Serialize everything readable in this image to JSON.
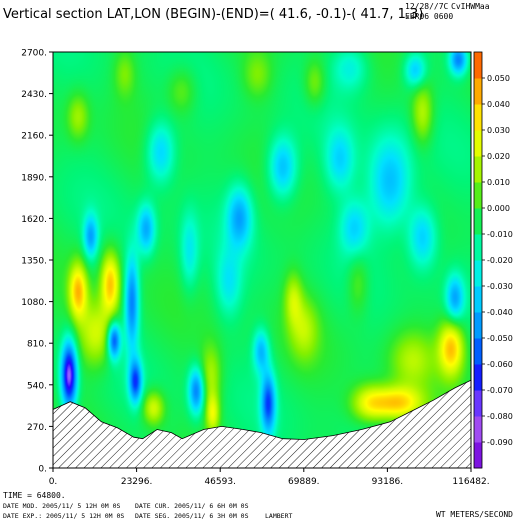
{
  "header": {
    "title": "Vertical section LAT,LON (BEGIN)-(END)=( 41.6, -0.1)-( 41.7,  1.3)",
    "stamp_line1": "12/28//7C",
    "stamp_line2": "CvIHWMaa",
    "stamp_line3": "EBR06 0600"
  },
  "footer": {
    "time_line": "TIME =   64800.",
    "date_mod": "DATE MOD. 2005/11/ 5  12H 0M 0S",
    "date_cur": "DATE CUR. 2005/11/ 6   6H 0M 0S",
    "date_exp": "DATE EXP.: 2005/11/ 5  12H 0M 0S",
    "date_seg": "DATE SEG. 2005/11/ 6   3H 0M 0S",
    "projection": "LAMBERT",
    "units": "WT METERS/SECOND"
  },
  "chart_data": {
    "type": "heatmap",
    "title": "Vertical section LAT,LON (BEGIN)-(END)=( 41.6, -0.1)-( 41.7,  1.3)",
    "xlabel": "",
    "ylabel": "",
    "colorbar_label": "WT METERS/SECOND",
    "x_ticks": [
      0,
      23296,
      46593,
      69889,
      93186,
      116482
    ],
    "x_tick_labels": [
      "0.",
      "23296.",
      "46593.",
      "69889.",
      "93186.",
      "116482."
    ],
    "y_ticks": [
      0,
      270,
      540,
      810,
      1080,
      1350,
      1620,
      1890,
      2160,
      2430,
      2700
    ],
    "y_tick_labels": [
      "0.",
      "270.",
      "540.",
      "810.",
      "1080.",
      "1350.",
      "1620.",
      "1890.",
      "2160.",
      "2430.",
      "2700."
    ],
    "xlim": [
      0,
      116482
    ],
    "ylim": [
      0,
      2700
    ],
    "colorbar_levels": [
      0.05,
      0.04,
      0.03,
      0.02,
      0.01,
      0.0,
      -0.01,
      -0.02,
      -0.03,
      -0.04,
      -0.05,
      -0.06,
      -0.07,
      -0.08,
      -0.09
    ],
    "colorbar_labels": [
      "0.050",
      "0.040",
      "0.030",
      "0.020",
      "0.010",
      "0.000",
      "-0.010",
      "-0.020",
      "-0.030",
      "-0.040",
      "-0.050",
      "-0.060",
      "-0.070",
      "-0.080",
      "-0.090"
    ],
    "colorbar_range": [
      -0.1,
      0.06
    ],
    "terrain_profile": [
      {
        "x": 0,
        "y": 380
      },
      {
        "x": 4800,
        "y": 430
      },
      {
        "x": 9000,
        "y": 390
      },
      {
        "x": 13500,
        "y": 300
      },
      {
        "x": 18000,
        "y": 260
      },
      {
        "x": 22500,
        "y": 200
      },
      {
        "x": 25000,
        "y": 190
      },
      {
        "x": 29000,
        "y": 250
      },
      {
        "x": 33000,
        "y": 230
      },
      {
        "x": 36000,
        "y": 190
      },
      {
        "x": 42000,
        "y": 250
      },
      {
        "x": 47000,
        "y": 270
      },
      {
        "x": 53000,
        "y": 250
      },
      {
        "x": 58000,
        "y": 230
      },
      {
        "x": 64000,
        "y": 190
      },
      {
        "x": 70000,
        "y": 185
      },
      {
        "x": 78000,
        "y": 210
      },
      {
        "x": 86000,
        "y": 250
      },
      {
        "x": 94000,
        "y": 300
      },
      {
        "x": 100000,
        "y": 370
      },
      {
        "x": 106000,
        "y": 440
      },
      {
        "x": 112000,
        "y": 520
      },
      {
        "x": 116482,
        "y": 570
      }
    ],
    "features": [
      {
        "x": 7000,
        "y": 1150,
        "w": 0.045,
        "sx": 2500,
        "sy": 180
      },
      {
        "x": 16000,
        "y": 1200,
        "w": 0.045,
        "sx": 2600,
        "sy": 200
      },
      {
        "x": 12000,
        "y": 870,
        "w": 0.03,
        "sx": 5000,
        "sy": 220
      },
      {
        "x": 4500,
        "y": 600,
        "w": -0.075,
        "sx": 2200,
        "sy": 220
      },
      {
        "x": 17000,
        "y": 830,
        "w": -0.055,
        "sx": 1800,
        "sy": 120
      },
      {
        "x": 23000,
        "y": 560,
        "w": -0.05,
        "sx": 1800,
        "sy": 140
      },
      {
        "x": 22000,
        "y": 1080,
        "w": -0.045,
        "sx": 2000,
        "sy": 300
      },
      {
        "x": 10500,
        "y": 1500,
        "w": -0.035,
        "sx": 2000,
        "sy": 140
      },
      {
        "x": 28000,
        "y": 390,
        "w": 0.03,
        "sx": 3000,
        "sy": 110
      },
      {
        "x": 26000,
        "y": 1550,
        "w": -0.035,
        "sx": 2500,
        "sy": 160
      },
      {
        "x": 40000,
        "y": 500,
        "w": -0.045,
        "sx": 2200,
        "sy": 150
      },
      {
        "x": 44500,
        "y": 350,
        "w": 0.03,
        "sx": 2000,
        "sy": 130
      },
      {
        "x": 44000,
        "y": 600,
        "w": 0.022,
        "sx": 3000,
        "sy": 200
      },
      {
        "x": 60000,
        "y": 420,
        "w": -0.05,
        "sx": 2000,
        "sy": 200
      },
      {
        "x": 58000,
        "y": 760,
        "w": -0.032,
        "sx": 2200,
        "sy": 140
      },
      {
        "x": 49000,
        "y": 1200,
        "w": -0.02,
        "sx": 3500,
        "sy": 220
      },
      {
        "x": 52000,
        "y": 1630,
        "w": -0.035,
        "sx": 3500,
        "sy": 200
      },
      {
        "x": 64000,
        "y": 1950,
        "w": -0.035,
        "sx": 4000,
        "sy": 200
      },
      {
        "x": 70000,
        "y": 900,
        "w": 0.02,
        "sx": 4000,
        "sy": 200
      },
      {
        "x": 67000,
        "y": 1100,
        "w": 0.022,
        "sx": 2500,
        "sy": 170
      },
      {
        "x": 96000,
        "y": 420,
        "w": 0.045,
        "sx": 7000,
        "sy": 110
      },
      {
        "x": 88000,
        "y": 420,
        "w": 0.03,
        "sx": 5000,
        "sy": 120
      },
      {
        "x": 111000,
        "y": 780,
        "w": 0.045,
        "sx": 3500,
        "sy": 180
      },
      {
        "x": 100000,
        "y": 700,
        "w": 0.02,
        "sx": 6000,
        "sy": 180
      },
      {
        "x": 112000,
        "y": 1100,
        "w": -0.035,
        "sx": 2500,
        "sy": 150
      },
      {
        "x": 94000,
        "y": 1850,
        "w": -0.035,
        "sx": 6000,
        "sy": 300
      },
      {
        "x": 103000,
        "y": 1500,
        "w": -0.03,
        "sx": 4000,
        "sy": 200
      },
      {
        "x": 84000,
        "y": 1560,
        "w": -0.025,
        "sx": 4000,
        "sy": 180
      },
      {
        "x": 80000,
        "y": 2000,
        "w": -0.025,
        "sx": 4000,
        "sy": 200
      },
      {
        "x": 103000,
        "y": 2300,
        "w": 0.025,
        "sx": 3000,
        "sy": 200
      },
      {
        "x": 101000,
        "y": 2580,
        "w": -0.03,
        "sx": 3000,
        "sy": 110
      },
      {
        "x": 113000,
        "y": 2650,
        "w": -0.045,
        "sx": 2500,
        "sy": 100
      },
      {
        "x": 83000,
        "y": 2600,
        "w": -0.02,
        "sx": 5000,
        "sy": 150
      },
      {
        "x": 73000,
        "y": 2500,
        "w": 0.018,
        "sx": 3000,
        "sy": 150
      },
      {
        "x": 30000,
        "y": 2050,
        "w": -0.03,
        "sx": 4000,
        "sy": 200
      },
      {
        "x": 7000,
        "y": 2280,
        "w": 0.02,
        "sx": 3000,
        "sy": 150
      },
      {
        "x": 36000,
        "y": 2450,
        "w": 0.015,
        "sx": 4000,
        "sy": 150
      },
      {
        "x": 57000,
        "y": 2550,
        "w": 0.015,
        "sx": 4000,
        "sy": 150
      },
      {
        "x": 20000,
        "y": 2560,
        "w": 0.015,
        "sx": 3000,
        "sy": 150
      },
      {
        "x": 85000,
        "y": 1200,
        "w": 0.015,
        "sx": 3000,
        "sy": 200
      },
      {
        "x": 38000,
        "y": 1400,
        "w": -0.02,
        "sx": 2500,
        "sy": 250
      }
    ]
  }
}
